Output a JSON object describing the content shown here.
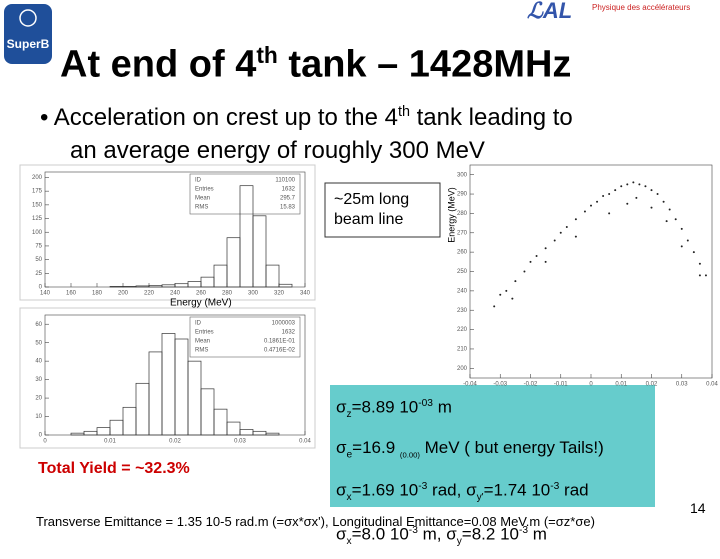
{
  "header": {
    "logo": "SuperB",
    "lab": "Physique des accélérateurs"
  },
  "title": [
    "At end of 4",
    "th",
    " tank – 1428MHz"
  ],
  "bullet": [
    "Acceleration on crest up to the 4",
    "th",
    " tank leading to",
    "an average energy of roughly 300 MeV"
  ],
  "plot1": {
    "type": "histogram",
    "xlabel": "Energy (MeV)",
    "stats": [
      [
        "ID",
        "110100"
      ],
      [
        "Entries",
        "1632"
      ],
      [
        "Mean",
        "295.7"
      ],
      [
        "RMS",
        "15.83"
      ]
    ],
    "bins": [
      140,
      150,
      160,
      170,
      180,
      190,
      200,
      210,
      220,
      230,
      240,
      250,
      260,
      270,
      280,
      290,
      300,
      310,
      320,
      330,
      340
    ],
    "counts": [
      0,
      0,
      0,
      0,
      0,
      1,
      1,
      2,
      3,
      4,
      6,
      10,
      18,
      40,
      90,
      185,
      130,
      40,
      5,
      0
    ],
    "xlim": [
      140,
      340
    ],
    "ylim": [
      0,
      210
    ],
    "xticks": [
      140,
      160,
      180,
      200,
      220,
      240,
      260,
      280,
      300,
      320,
      340
    ],
    "yticks": [
      0,
      25,
      50,
      75,
      100,
      125,
      150,
      175,
      200
    ]
  },
  "plot2": {
    "type": "histogram",
    "stats": [
      [
        "ID",
        "1000003"
      ],
      [
        "Entries",
        "1632"
      ],
      [
        "Mean",
        "0.1861E-01"
      ],
      [
        "RMS",
        "0.4716E-02"
      ]
    ],
    "bins": [
      0,
      0.002,
      0.004,
      0.006,
      0.008,
      0.01,
      0.012,
      0.014,
      0.016,
      0.018,
      0.02,
      0.022,
      0.024,
      0.026,
      0.028,
      0.03,
      0.032,
      0.034,
      0.036,
      0.038,
      0.04
    ],
    "counts": [
      0,
      0,
      1,
      2,
      4,
      8,
      15,
      28,
      45,
      55,
      52,
      40,
      25,
      14,
      7,
      3,
      2,
      1,
      0,
      0
    ],
    "xlim": [
      0,
      0.04
    ],
    "ylim": [
      0,
      65
    ],
    "xticks": [
      0,
      0.01,
      0.02,
      0.03,
      0.04
    ],
    "yticks": [
      0,
      10,
      20,
      30,
      40,
      50,
      60
    ]
  },
  "plot3": {
    "type": "scatter",
    "ylabel": "Energy (MeV)",
    "x": [
      -0.032,
      -0.03,
      -0.028,
      -0.025,
      -0.022,
      -0.02,
      -0.018,
      -0.015,
      -0.012,
      -0.01,
      -0.008,
      -0.005,
      -0.002,
      0,
      0.002,
      0.004,
      0.006,
      0.008,
      0.01,
      0.012,
      0.014,
      0.016,
      0.018,
      0.02,
      0.022,
      0.024,
      0.026,
      0.028,
      0.03,
      0.032,
      0.034,
      0.036,
      0.038,
      0.006,
      0.012,
      0.02,
      -0.005,
      0.015,
      0.025,
      -0.015,
      0.03,
      0.036,
      -0.026
    ],
    "y": [
      232,
      238,
      240,
      245,
      250,
      255,
      258,
      262,
      266,
      270,
      273,
      277,
      281,
      284,
      286,
      289,
      290,
      292,
      294,
      295,
      296,
      295,
      294,
      292,
      290,
      286,
      282,
      277,
      272,
      266,
      260,
      254,
      248,
      280,
      285,
      283,
      268,
      288,
      276,
      255,
      263,
      248,
      236
    ],
    "xlim": [
      -0.04,
      0.04
    ],
    "ylim": [
      195,
      305
    ],
    "xticks": [
      -0.04,
      -0.03,
      -0.02,
      -0.01,
      0,
      0.01,
      0.02,
      0.03,
      0.04
    ],
    "yticks": [
      200,
      210,
      220,
      230,
      240,
      250,
      260,
      270,
      280,
      290,
      300
    ]
  },
  "callout": [
    "~25m long",
    "beam line"
  ],
  "sigmas": [
    [
      "σ",
      "z",
      "=8.89 10",
      "-03",
      " m"
    ],
    [
      "σ",
      "e",
      "=16.9 ",
      "(0.00)",
      " MeV ( but energy Tails!)"
    ],
    [
      "σ",
      "x",
      "=1.69 10",
      "-3",
      " rad, ",
      "σ",
      "y'",
      "=1.74 10",
      "-3",
      " rad"
    ],
    [
      "σ",
      "x",
      "=8.0 10",
      "-3",
      " m, ",
      "σ",
      "y",
      "=8.2 10",
      "-3",
      " m"
    ]
  ],
  "yield": "Total Yield = ~32.3%",
  "footer": "Transverse Emittance = 1.35 10-5 rad.m (=σx*σx'), Longitudinal Emittance=0.08 MeV.m (=σz*σe)",
  "page_number": "14"
}
